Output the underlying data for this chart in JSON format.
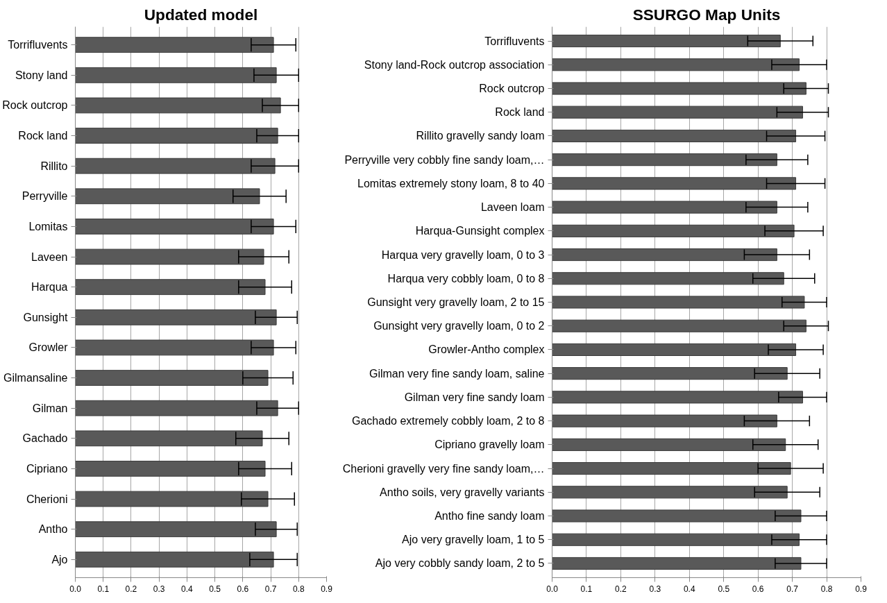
{
  "chart_data": [
    {
      "type": "bar",
      "title": "Updated model",
      "orientation": "horizontal",
      "grid": "x",
      "categories": [
        "Torrifluvents",
        "Stony land",
        "Rock outcrop",
        "Rock land",
        "Rillito",
        "Perryville",
        "Lomitas",
        "Laveen",
        "Harqua",
        "Gunsight",
        "Growler",
        "Gilmansaline",
        "Gilman",
        "Gachado",
        "Cipriano",
        "Cherioni",
        "Antho",
        "Ajo"
      ],
      "series": [
        {
          "color": "#595959",
          "values": [
            0.71,
            0.72,
            0.735,
            0.725,
            0.715,
            0.66,
            0.71,
            0.675,
            0.68,
            0.72,
            0.71,
            0.69,
            0.725,
            0.67,
            0.68,
            0.69,
            0.72,
            0.71
          ],
          "errors": [
            0.08,
            0.08,
            0.065,
            0.075,
            0.085,
            0.095,
            0.08,
            0.09,
            0.095,
            0.075,
            0.08,
            0.09,
            0.075,
            0.095,
            0.095,
            0.095,
            0.075,
            0.085
          ]
        }
      ],
      "xlim": [
        0,
        0.9
      ],
      "xticks": [
        {
          "value": 0,
          "label": "0.0"
        },
        0.1,
        0.2,
        0.3,
        0.4,
        0.5,
        0.6,
        0.7,
        0.8,
        0.9
      ]
    },
    {
      "type": "bar",
      "title": "SSURGO Map Units",
      "orientation": "horizontal",
      "grid": "x",
      "categories": [
        "Torrifluvents",
        "Stony land-Rock outcrop association",
        "Rock outcrop",
        "Rock land",
        "Rillito gravelly sandy loam",
        "Perryville very cobbly fine sandy loam,…",
        "Lomitas extremely stony loam, 8 to 40",
        "Laveen loam",
        "Harqua-Gunsight complex",
        "Harqua very gravelly loam, 0 to 3",
        "Harqua very cobbly loam, 0 to 8",
        "Gunsight very gravelly loam, 2 to 15",
        "Gunsight very gravelly loam, 0 to 2",
        "Growler-Antho complex",
        "Gilman very fine sandy loam, saline",
        "Gilman very fine sandy loam",
        "Gachado extremely cobbly loam, 2 to 8",
        "Cipriano gravelly loam",
        "Cherioni gravelly very fine sandy loam,…",
        "Antho soils, very gravelly variants",
        "Antho fine sandy loam",
        "Ajo very gravelly loam, 1 to 5",
        "Ajo very cobbly sandy loam, 2 to 5"
      ],
      "series": [
        {
          "color": "#595959",
          "values": [
            0.665,
            0.72,
            0.74,
            0.73,
            0.71,
            0.655,
            0.71,
            0.655,
            0.705,
            0.655,
            0.675,
            0.735,
            0.74,
            0.71,
            0.685,
            0.73,
            0.655,
            0.68,
            0.695,
            0.685,
            0.725,
            0.72,
            0.725
          ],
          "errors": [
            0.095,
            0.08,
            0.065,
            0.075,
            0.085,
            0.09,
            0.085,
            0.09,
            0.085,
            0.095,
            0.09,
            0.065,
            0.065,
            0.08,
            0.095,
            0.07,
            0.095,
            0.095,
            0.095,
            0.095,
            0.075,
            0.08,
            0.075
          ]
        }
      ],
      "xlim": [
        0,
        0.9
      ],
      "xticks": [
        {
          "value": 0,
          "label": "0.0"
        },
        0.1,
        0.2,
        0.3,
        0.4,
        0.5,
        0.6,
        0.7,
        0.8,
        0.9
      ]
    }
  ]
}
